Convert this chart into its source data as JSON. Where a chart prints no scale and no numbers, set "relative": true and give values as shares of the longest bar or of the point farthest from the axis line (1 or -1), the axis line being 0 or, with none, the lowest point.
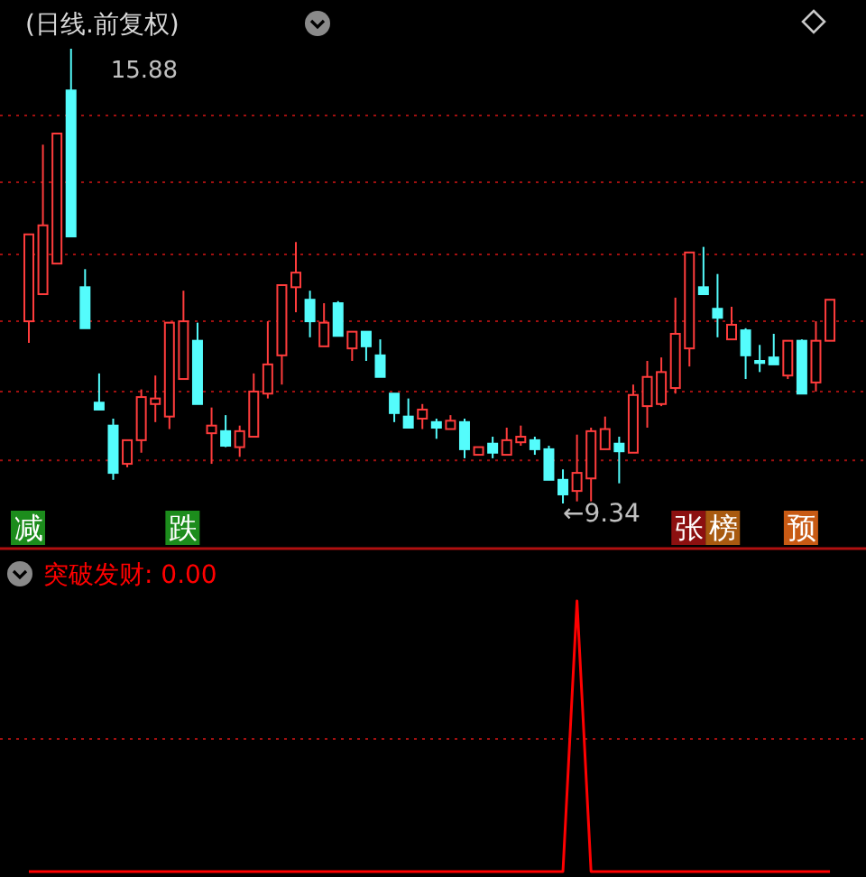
{
  "chart_data": [
    {
      "type": "candlestick",
      "title": "(日线.前复权)",
      "categories": [
        null,
        null,
        null,
        null,
        null,
        null,
        null,
        null,
        null,
        null,
        null,
        null,
        null,
        null,
        null,
        null,
        null,
        null,
        null,
        null,
        null,
        null,
        null,
        null,
        null,
        null,
        null,
        null,
        null,
        null,
        null,
        null,
        null,
        null,
        null,
        null,
        null,
        null,
        null,
        null,
        null,
        null,
        null,
        null,
        null,
        null,
        null,
        null,
        null,
        null,
        null,
        null,
        null,
        null,
        null,
        null,
        null,
        null
      ],
      "ohlc": [
        [
          11.96,
          13.21,
          11.65,
          13.21
        ],
        [
          12.35,
          14.5,
          12.35,
          13.34
        ],
        [
          12.79,
          14.66,
          12.79,
          14.66
        ],
        [
          15.28,
          15.88,
          13.18,
          13.18
        ],
        [
          12.45,
          12.71,
          11.86,
          11.86
        ],
        [
          10.79,
          11.21,
          10.69,
          10.69
        ],
        [
          10.46,
          10.56,
          9.68,
          9.78
        ],
        [
          9.91,
          10.25,
          9.86,
          10.25
        ],
        [
          10.25,
          10.98,
          10.07,
          10.87
        ],
        [
          10.77,
          11.18,
          10.51,
          10.85
        ],
        [
          10.59,
          11.94,
          10.41,
          11.94
        ],
        [
          11.13,
          12.4,
          11.13,
          11.96
        ],
        [
          11.68,
          11.94,
          10.77,
          10.77
        ],
        [
          10.35,
          10.72,
          9.91,
          10.46
        ],
        [
          10.38,
          10.61,
          10.15,
          10.17
        ],
        [
          10.15,
          10.46,
          10.01,
          10.38
        ],
        [
          10.3,
          11.21,
          10.3,
          10.95
        ],
        [
          10.92,
          11.96,
          10.85,
          11.34
        ],
        [
          11.47,
          12.48,
          11.05,
          12.48
        ],
        [
          12.45,
          13.1,
          12.09,
          12.66
        ],
        [
          12.27,
          12.4,
          11.73,
          11.96
        ],
        [
          11.6,
          12.22,
          11.6,
          11.94
        ],
        [
          12.22,
          12.25,
          11.75,
          11.75
        ],
        [
          11.57,
          11.81,
          11.39,
          11.81
        ],
        [
          11.81,
          11.81,
          11.39,
          11.6
        ],
        [
          11.47,
          11.7,
          11.16,
          11.16
        ],
        [
          10.92,
          10.92,
          10.51,
          10.64
        ],
        [
          10.59,
          10.85,
          10.43,
          10.43
        ],
        [
          10.56,
          10.77,
          10.41,
          10.69
        ],
        [
          10.51,
          10.56,
          10.27,
          10.43
        ],
        [
          10.41,
          10.61,
          10.41,
          10.53
        ],
        [
          10.51,
          10.56,
          9.99,
          10.12
        ],
        [
          10.04,
          10.15,
          10.04,
          10.15
        ],
        [
          10.2,
          10.3,
          9.99,
          10.07
        ],
        [
          10.04,
          10.43,
          10.04,
          10.25
        ],
        [
          10.22,
          10.46,
          10.17,
          10.3
        ],
        [
          10.25,
          10.3,
          10.04,
          10.12
        ],
        [
          10.12,
          10.17,
          9.68,
          9.68
        ],
        [
          9.68,
          9.83,
          9.34,
          9.47
        ],
        [
          9.52,
          10.33,
          9.37,
          9.78
        ],
        [
          9.7,
          10.43,
          9.37,
          10.38
        ],
        [
          10.12,
          10.59,
          10.12,
          10.41
        ],
        [
          10.2,
          10.3,
          9.63,
          10.09
        ],
        [
          10.07,
          11.05,
          10.07,
          10.9
        ],
        [
          10.74,
          11.39,
          10.43,
          11.16
        ],
        [
          10.77,
          11.44,
          10.74,
          11.23
        ],
        [
          11.0,
          12.3,
          10.92,
          11.78
        ],
        [
          11.57,
          12.95,
          11.31,
          12.95
        ],
        [
          12.45,
          13.03,
          12.35,
          12.35
        ],
        [
          12.14,
          12.64,
          11.73,
          12.01
        ],
        [
          11.7,
          12.17,
          11.7,
          11.91
        ],
        [
          11.83,
          11.86,
          11.13,
          11.47
        ],
        [
          11.39,
          11.62,
          11.23,
          11.36
        ],
        [
          11.44,
          11.78,
          11.34,
          11.34
        ],
        [
          11.18,
          11.68,
          11.13,
          11.68
        ],
        [
          11.68,
          11.7,
          10.92,
          10.92
        ],
        [
          11.08,
          11.96,
          10.95,
          11.68
        ],
        [
          11.68,
          12.27,
          11.68,
          12.27
        ]
      ],
      "colors": [
        "#ff3c3c",
        "#ff3c3c",
        "#ff3c3c",
        "#54fcfc",
        "#54fcfc",
        "#54fcfc",
        "#54fcfc",
        "#ff3c3c",
        "#ff3c3c",
        "#ff3c3c",
        "#ff3c3c",
        "#ff3c3c",
        "#54fcfc",
        "#ff3c3c",
        "#54fcfc",
        "#ff3c3c",
        "#ff3c3c",
        "#ff3c3c",
        "#ff3c3c",
        "#ff3c3c",
        "#54fcfc",
        "#ff3c3c",
        "#54fcfc",
        "#ff3c3c",
        "#54fcfc",
        "#54fcfc",
        "#54fcfc",
        "#54fcfc",
        "#ff3c3c",
        "#54fcfc",
        "#ff3c3c",
        "#54fcfc",
        "#ff3c3c",
        "#54fcfc",
        "#ff3c3c",
        "#ff3c3c",
        "#54fcfc",
        "#54fcfc",
        "#54fcfc",
        "#ff3c3c",
        "#ff3c3c",
        "#ff3c3c",
        "#54fcfc",
        "#ff3c3c",
        "#ff3c3c",
        "#ff3c3c",
        "#ff3c3c",
        "#ff3c3c",
        "#54fcfc",
        "#54fcfc",
        "#ff3c3c",
        "#54fcfc",
        "#54fcfc",
        "#54fcfc",
        "#ff3c3c",
        "#54fcfc",
        "#ff3c3c",
        "#ff3c3c"
      ],
      "annotations": [
        "15.88",
        "←9.34",
        "减",
        "跌",
        "张榜",
        "预"
      ],
      "ref_lines": [
        {
          "axis": "y",
          "value": 14.92,
          "color": "#a01010",
          "line_style": "dotted"
        },
        {
          "axis": "y",
          "value": 13.96,
          "color": "#a01010",
          "line_style": "dotted"
        },
        {
          "axis": "y",
          "value": 12.92,
          "color": "#a01010",
          "line_style": "dotted"
        },
        {
          "axis": "y",
          "value": 11.96,
          "color": "#a01010",
          "line_style": "dotted"
        },
        {
          "axis": "y",
          "value": 10.95,
          "color": "#a01010",
          "line_style": "dotted"
        },
        {
          "axis": "y",
          "value": 9.96,
          "color": "#a01010",
          "line_style": "dotted"
        }
      ]
    },
    {
      "type": "line",
      "title": "突破发财: 0.00",
      "relative": true,
      "color": "#ff0000",
      "ref_lines": [
        {
          "axis": "y",
          "value": 0.49,
          "color": "#a01010",
          "line_style": "dotted"
        }
      ],
      "categories": [
        null,
        null,
        null,
        null,
        null,
        null,
        null,
        null,
        null,
        null,
        null,
        null,
        null,
        null,
        null,
        null,
        null,
        null,
        null,
        null,
        null,
        null,
        null,
        null,
        null,
        null,
        null,
        null,
        null,
        null,
        null,
        null,
        null,
        null,
        null,
        null,
        null,
        null,
        null,
        null,
        null,
        null,
        null,
        null,
        null,
        null,
        null,
        null,
        null,
        null,
        null,
        null,
        null,
        null,
        null,
        null,
        null,
        null
      ],
      "values": [
        0,
        0,
        0,
        0,
        0,
        0,
        0,
        0,
        0,
        0,
        0,
        0,
        0,
        0,
        0,
        0,
        0,
        0,
        0,
        0,
        0,
        0,
        0,
        0,
        0,
        0,
        0,
        0,
        0,
        0,
        0,
        0,
        0,
        0,
        0,
        0,
        0,
        0,
        0,
        1,
        0,
        0,
        0,
        0,
        0,
        0,
        0,
        0,
        0,
        0,
        0,
        0,
        0,
        0,
        0,
        0,
        0,
        0
      ]
    }
  ]
}
